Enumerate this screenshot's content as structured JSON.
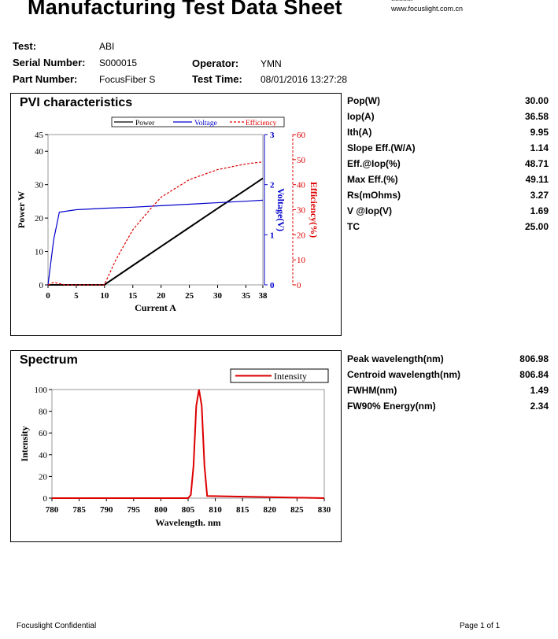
{
  "header": {
    "title": "Manufacturing Test Data Sheet",
    "url_partial": "...........",
    "url": "www.focuslight.com.cn"
  },
  "info": {
    "test_label": "Test:",
    "test_value": "ABI",
    "serial_label": "Serial Number:",
    "serial_value": "S000015",
    "part_label": "Part Number:",
    "part_value": "FocusFiber S",
    "operator_label": "Operator:",
    "operator_value": "YMN",
    "time_label": "Test Time:",
    "time_value": "08/01/2016 13:27:28"
  },
  "pvi": {
    "title": "PVI characteristics",
    "stats": [
      {
        "label": "Pop(W)",
        "value": "30.00"
      },
      {
        "label": "Iop(A)",
        "value": "36.58"
      },
      {
        "label": "Ith(A)",
        "value": "9.95"
      },
      {
        "label": "Slope Eff.(W/A)",
        "value": "1.14"
      },
      {
        "label": "Eff.@Iop(%)",
        "value": "48.71"
      },
      {
        "label": "Max Eff.(%)",
        "value": "49.11"
      },
      {
        "label": "Rs(mOhms)",
        "value": "3.27"
      },
      {
        "label": "V @Iop(V)",
        "value": "1.69"
      },
      {
        "label": "TC",
        "value": "25.00"
      }
    ]
  },
  "spectrum": {
    "title": "Spectrum",
    "stats": [
      {
        "label": "Peak wavelength(nm)",
        "value": "806.98"
      },
      {
        "label": "Centroid wavelength(nm)",
        "value": "806.84"
      },
      {
        "label": "FWHM(nm)",
        "value": "1.49"
      },
      {
        "label": "FW90% Energy(nm)",
        "value": "2.34"
      }
    ]
  },
  "footer": {
    "left": "Focuslight Confidential",
    "right": "Page 1 of 1"
  },
  "chart_data": [
    {
      "type": "line",
      "title": "PVI characteristics",
      "xlabel": "Current A",
      "ylabel": "Power W",
      "y2label": "Voltage(V)",
      "y3label": "Efficiency(%)",
      "xlim": [
        0,
        38
      ],
      "ylim": [
        0,
        45
      ],
      "y2lim": [
        0,
        3
      ],
      "y3lim": [
        0,
        60
      ],
      "x_ticks": [
        0,
        5,
        10,
        15,
        20,
        25,
        30,
        35,
        38
      ],
      "y_ticks": [
        0,
        10,
        20,
        30,
        40,
        45
      ],
      "y2_ticks": [
        0,
        1,
        2,
        3
      ],
      "y3_ticks": [
        0,
        10,
        20,
        30,
        40,
        50,
        60
      ],
      "legend": [
        "Power",
        "Voltage",
        "Efficiency"
      ],
      "colors": {
        "Power": "#000000",
        "Voltage": "#0000cc",
        "Efficiency": "#dd0000"
      },
      "series": [
        {
          "name": "Power",
          "x": [
            0,
            5,
            9.95,
            15,
            20,
            25,
            30,
            35,
            38
          ],
          "y": [
            0,
            0,
            0,
            5.8,
            11.5,
            17.2,
            22.9,
            28.5,
            31.9
          ]
        },
        {
          "name": "Voltage",
          "x": [
            0,
            1,
            2,
            5,
            10,
            15,
            20,
            25,
            30,
            35,
            38
          ],
          "y": [
            0,
            0.9,
            1.45,
            1.5,
            1.53,
            1.55,
            1.58,
            1.61,
            1.64,
            1.67,
            1.69
          ]
        },
        {
          "name": "Efficiency",
          "x": [
            0,
            1,
            3,
            9.95,
            12,
            15,
            18,
            20,
            25,
            30,
            35,
            38
          ],
          "y": [
            0,
            1,
            0,
            0,
            10,
            22,
            30,
            35,
            42,
            46,
            48.3,
            49.1
          ]
        }
      ]
    },
    {
      "type": "line",
      "title": "Spectrum",
      "xlabel": "Wavelength. nm",
      "ylabel": "Intensity",
      "xlim": [
        780,
        830
      ],
      "ylim": [
        0,
        100
      ],
      "x_ticks": [
        780,
        785,
        790,
        795,
        800,
        805,
        810,
        815,
        820,
        825,
        830
      ],
      "y_ticks": [
        0,
        20,
        40,
        60,
        80,
        100
      ],
      "legend": [
        "Intensity"
      ],
      "legend_position": "top-right",
      "colors": {
        "Intensity": "#dd0000"
      },
      "series": [
        {
          "name": "Intensity",
          "x": [
            780,
            805,
            805.5,
            806,
            806.5,
            807,
            807.5,
            808,
            808.5,
            830
          ],
          "y": [
            0,
            0,
            3,
            30,
            85,
            100,
            85,
            30,
            2,
            0
          ]
        }
      ]
    }
  ]
}
